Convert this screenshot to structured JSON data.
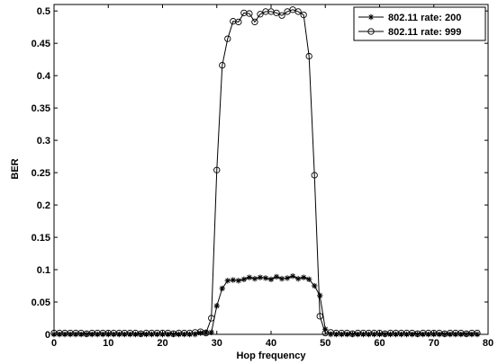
{
  "chart_data": {
    "type": "line",
    "xlabel": "Hop frequency",
    "ylabel": "BER",
    "xlim": [
      0,
      80
    ],
    "ylim": [
      0,
      0.51
    ],
    "xticks": [
      0,
      10,
      20,
      30,
      40,
      50,
      60,
      70,
      80
    ],
    "yticks": [
      0,
      0.05,
      0.1,
      0.15,
      0.2,
      0.25,
      0.3,
      0.35,
      0.4,
      0.45,
      0.5
    ],
    "grid": false,
    "legend_position": "top-right",
    "x": [
      0,
      1,
      2,
      3,
      4,
      5,
      6,
      7,
      8,
      9,
      10,
      11,
      12,
      13,
      14,
      15,
      16,
      17,
      18,
      19,
      20,
      21,
      22,
      23,
      24,
      25,
      26,
      27,
      28,
      29,
      30,
      31,
      32,
      33,
      34,
      35,
      36,
      37,
      38,
      39,
      40,
      41,
      42,
      43,
      44,
      45,
      46,
      47,
      48,
      49,
      50,
      51,
      52,
      53,
      54,
      55,
      56,
      57,
      58,
      59,
      60,
      61,
      62,
      63,
      64,
      65,
      66,
      67,
      68,
      69,
      70,
      71,
      72,
      73,
      74,
      75,
      76,
      77,
      78
    ],
    "series": [
      {
        "name": "802.11 rate: 200",
        "marker": "star",
        "color": "#000000",
        "values": [
          0,
          0,
          0,
          0,
          0,
          0,
          0,
          0,
          0,
          0,
          0,
          0,
          0,
          0,
          0,
          0,
          0,
          0,
          0,
          0,
          0,
          0,
          0,
          0,
          0,
          0,
          0,
          0.002,
          0.003,
          0.003,
          0.044,
          0.071,
          0.083,
          0.084,
          0.083,
          0.085,
          0.088,
          0.086,
          0.088,
          0.087,
          0.085,
          0.089,
          0.086,
          0.087,
          0.09,
          0.086,
          0.088,
          0.085,
          0.075,
          0.06,
          0.008,
          0,
          0,
          0,
          0,
          0,
          0,
          0,
          0,
          0,
          0,
          0,
          0,
          0,
          0,
          0,
          0,
          0,
          0,
          0,
          0,
          0,
          0,
          0,
          0,
          0,
          0,
          0,
          0
        ]
      },
      {
        "name": "802.11 rate: 999",
        "marker": "circle",
        "color": "#000000",
        "values": [
          0.002,
          0.002,
          0.002,
          0.002,
          0.002,
          0.002,
          0.001,
          0.002,
          0.002,
          0.002,
          0.002,
          0.002,
          0.002,
          0.002,
          0.002,
          0.002,
          0.001,
          0.002,
          0.002,
          0.002,
          0.002,
          0.002,
          0.001,
          0.002,
          0.002,
          0.002,
          0.003,
          0.004,
          0.002,
          0.025,
          0.254,
          0.416,
          0.457,
          0.484,
          0.483,
          0.497,
          0.496,
          0.483,
          0.495,
          0.499,
          0.499,
          0.497,
          0.493,
          0.499,
          0.502,
          0.499,
          0.494,
          0.43,
          0.246,
          0.028,
          0.002,
          0.003,
          0.002,
          0.002,
          0.002,
          0.001,
          0.002,
          0.002,
          0.002,
          0.002,
          0.002,
          0.001,
          0.002,
          0.002,
          0.002,
          0.002,
          0.002,
          0.001,
          0.002,
          0.002,
          0.002,
          0.002,
          0.001,
          0.002,
          0.002,
          0.002,
          0.001,
          0.002,
          0.002
        ]
      }
    ]
  }
}
